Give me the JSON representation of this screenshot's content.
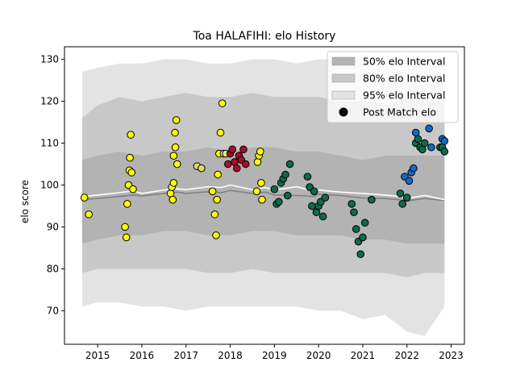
{
  "chart_data": {
    "type": "scatter",
    "title": "Toa HALAFIHI: elo History",
    "xlabel": "",
    "ylabel": "elo score",
    "xlim": [
      2014.25,
      2023.3
    ],
    "ylim": [
      62,
      133
    ],
    "x_ticks": [
      2015,
      2016,
      2017,
      2018,
      2019,
      2020,
      2021,
      2022,
      2023
    ],
    "y_ticks": [
      70,
      80,
      90,
      100,
      110,
      120,
      130
    ],
    "legend_position": "top-right",
    "legend": [
      {
        "label": "50% elo Interval",
        "kind": "band",
        "color": "#b3b3b3"
      },
      {
        "label": "80% elo Interval",
        "kind": "band",
        "color": "#c8c8c8"
      },
      {
        "label": "95% elo Interval",
        "kind": "band",
        "color": "#e3e3e3"
      },
      {
        "label": "Post Match elo",
        "kind": "marker",
        "color": "#000000"
      }
    ],
    "band_x": [
      2014.65,
      2015.0,
      2015.5,
      2016.0,
      2016.5,
      2017.0,
      2017.5,
      2018.0,
      2018.5,
      2019.0,
      2019.5,
      2020.0,
      2020.5,
      2021.0,
      2021.5,
      2022.0,
      2022.4,
      2022.85
    ],
    "band_50": {
      "lower": [
        86,
        87,
        88,
        88,
        89,
        89,
        88,
        88,
        89,
        89,
        88,
        88,
        88,
        87,
        87,
        86,
        86,
        86
      ],
      "upper": [
        106,
        107,
        108,
        107,
        108,
        108,
        109,
        108,
        109,
        109,
        108,
        108,
        107,
        106,
        107,
        107,
        107,
        107
      ]
    },
    "band_80": {
      "lower": [
        79,
        80,
        80,
        80,
        80,
        80,
        79,
        79,
        80,
        79,
        79,
        79,
        79,
        79,
        79,
        78,
        79,
        79
      ],
      "upper": [
        116,
        119,
        121,
        120,
        121,
        122,
        121,
        121,
        122,
        121,
        121,
        121,
        120,
        120,
        119,
        121,
        120,
        120
      ]
    },
    "band_95": {
      "lower": [
        71,
        72,
        72,
        71,
        71,
        70,
        71,
        71,
        71,
        71,
        71,
        70,
        70,
        68,
        69,
        65,
        64,
        71
      ],
      "upper": [
        127,
        128,
        129,
        129,
        130,
        130,
        129,
        129,
        130,
        130,
        129,
        130,
        130,
        131,
        130,
        131,
        130,
        130
      ]
    },
    "series": [
      {
        "type": "line",
        "color": "#808080",
        "x": [
          2014.65,
          2015.0,
          2015.5,
          2015.8,
          2016.0,
          2016.5,
          2016.8,
          2017.0,
          2017.5,
          2017.8,
          2018.0,
          2018.5,
          2018.8,
          2019.0,
          2019.5,
          2019.9,
          2020.0,
          2020.5,
          2021.0,
          2021.5,
          2021.9,
          2022.0,
          2022.4,
          2022.85
        ],
        "values": [
          96.5,
          96.8,
          97.3,
          97.6,
          97.4,
          98.0,
          98.3,
          98.0,
          98.4,
          98.2,
          98.7,
          98.0,
          98.3,
          97.6,
          97.5,
          97.3,
          97.8,
          97.5,
          96.9,
          96.8,
          96.4,
          96.2,
          96.8,
          96.3
        ]
      },
      {
        "type": "line",
        "color": "#ffffff",
        "x": [
          2014.65,
          2015.0,
          2015.5,
          2015.8,
          2016.0,
          2016.5,
          2016.8,
          2017.0,
          2017.5,
          2017.8,
          2018.0,
          2018.5,
          2018.8,
          2019.0,
          2019.5,
          2019.9,
          2020.0,
          2020.5,
          2021.0,
          2021.5,
          2021.9,
          2022.0,
          2022.4,
          2022.85
        ],
        "values": [
          97.2,
          97.6,
          98.2,
          98.6,
          98.0,
          98.8,
          99.1,
          98.9,
          99.6,
          99.4,
          100.0,
          98.9,
          99.4,
          98.8,
          99.6,
          98.5,
          98.8,
          98.3,
          98.0,
          97.6,
          97.2,
          96.8,
          97.5,
          96.5
        ]
      },
      {
        "type": "scatter",
        "color": "#ffff00",
        "x": [
          2014.7,
          2014.8,
          2015.62,
          2015.65,
          2015.67,
          2015.7,
          2015.72,
          2015.73,
          2015.75,
          2015.77,
          2015.8,
          2016.65,
          2016.68,
          2016.7,
          2016.72,
          2016.72,
          2016.75,
          2016.76,
          2016.78,
          2016.8,
          2017.6,
          2017.65,
          2017.68,
          2017.7,
          2017.72,
          2017.75,
          2017.78,
          2017.82,
          2018.6,
          2018.62,
          2018.65,
          2018.68,
          2018.7,
          2018.72
        ],
        "values": [
          97,
          93,
          90,
          87.5,
          95.5,
          100,
          103.5,
          106.5,
          112,
          103,
          99,
          98,
          99.5,
          96.5,
          100.5,
          107,
          112.5,
          109,
          115.5,
          105,
          98.5,
          93,
          88,
          96.5,
          102.5,
          107.5,
          112.5,
          119.5,
          98.5,
          105.5,
          107,
          108,
          100.5,
          96.5
        ]
      },
      {
        "type": "scatter",
        "color": "#dddd66",
        "x": [
          2017.25,
          2017.35
        ],
        "values": [
          104.5,
          104
        ]
      },
      {
        "type": "scatter",
        "color": "#e8e87a",
        "x": [
          2017.85,
          2017.9
        ],
        "values": [
          107.5,
          107.5
        ]
      },
      {
        "type": "scatter",
        "color": "#a50f2d",
        "x": [
          2017.95,
          2018.0,
          2018.05,
          2018.1,
          2018.15,
          2018.2,
          2018.25,
          2018.3,
          2018.35
        ],
        "values": [
          105,
          107.5,
          108.5,
          105.5,
          104,
          107,
          106,
          108.5,
          105
        ]
      },
      {
        "type": "scatter",
        "color": "#0e6a4a",
        "x": [
          2019.0,
          2019.05,
          2019.1,
          2019.15,
          2019.2,
          2019.25,
          2019.3,
          2019.35,
          2019.75,
          2019.8,
          2019.85,
          2019.9,
          2019.95,
          2020.0,
          2020.05,
          2020.1,
          2020.15,
          2020.75,
          2020.8,
          2020.85,
          2020.9,
          2020.95,
          2021.0,
          2021.05,
          2021.2,
          2021.85,
          2021.9,
          2022.0,
          2022.2,
          2022.25,
          2022.3,
          2022.35,
          2022.4,
          2022.75,
          2022.8,
          2022.85
        ],
        "values": [
          99,
          95.5,
          96,
          100.5,
          101.5,
          102.5,
          97.5,
          105,
          102,
          99.5,
          95,
          98.5,
          93.5,
          95,
          96,
          92.5,
          97,
          95.5,
          93.5,
          89.5,
          86.5,
          83.5,
          87.5,
          91,
          96.5,
          98,
          95.5,
          97,
          110,
          111,
          109,
          108.5,
          110,
          109,
          109,
          108
        ]
      },
      {
        "type": "scatter",
        "color": "#0f6cc7",
        "x": [
          2021.95,
          2022.05,
          2022.1,
          2022.15,
          2022.2,
          2022.5,
          2022.55,
          2022.8,
          2022.85
        ],
        "values": [
          102,
          101,
          103,
          104,
          112.5,
          113.5,
          109,
          111,
          110.5
        ]
      }
    ]
  }
}
